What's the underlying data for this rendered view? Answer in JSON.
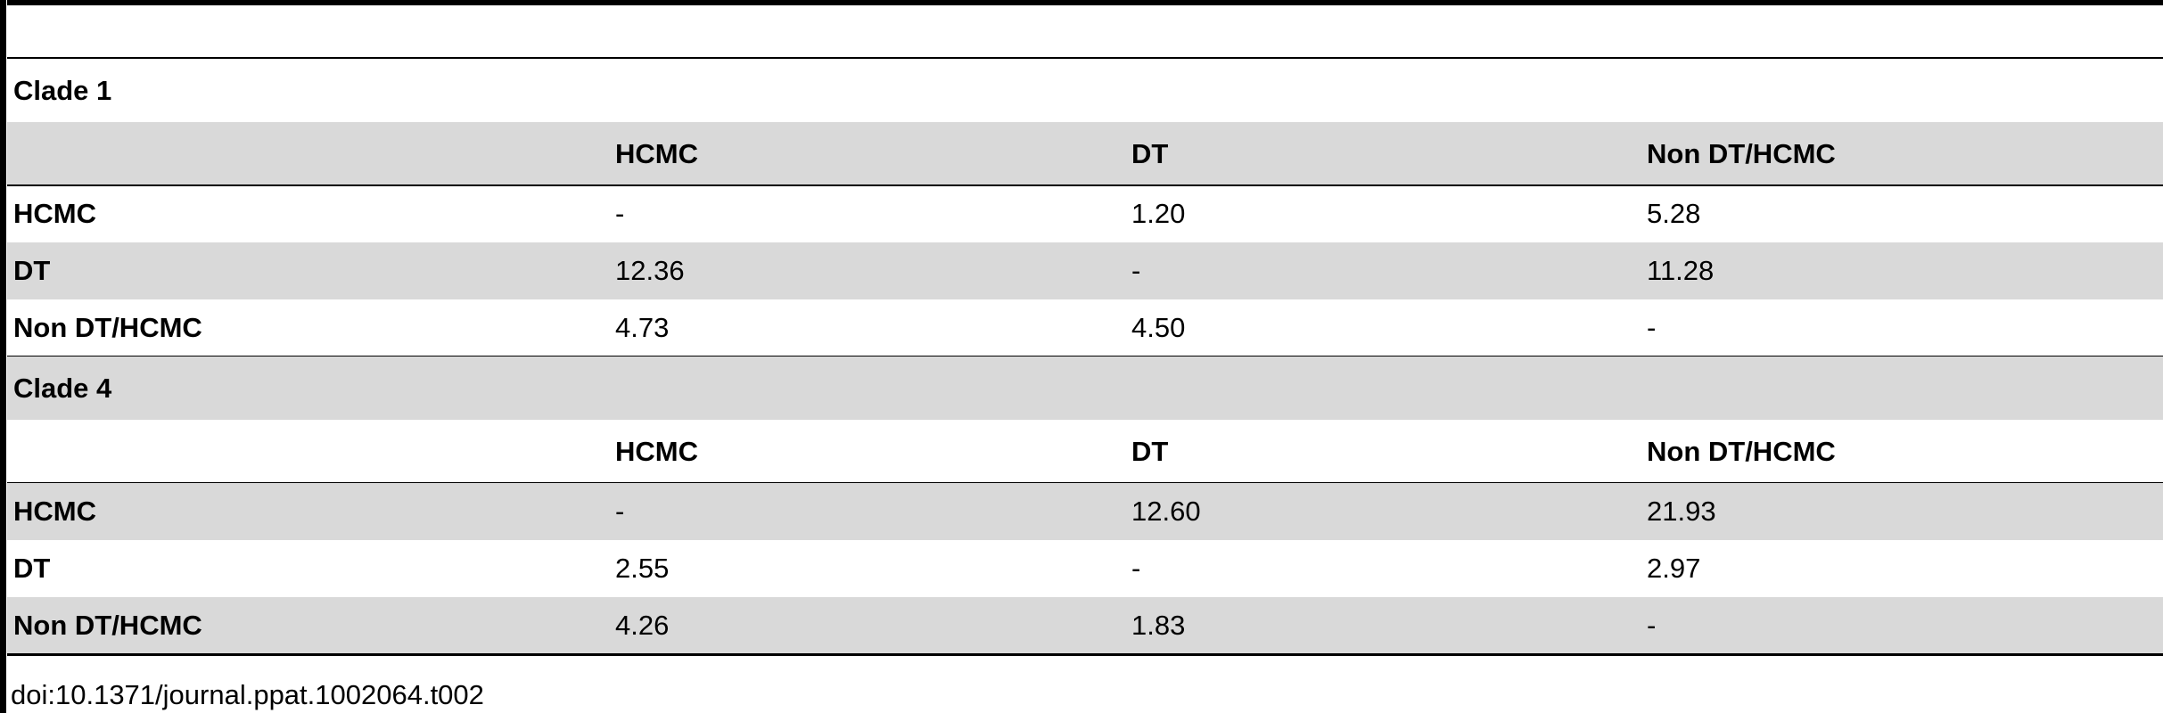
{
  "table": {
    "sections": [
      {
        "title": "Clade 1",
        "columns": [
          "HCMC",
          "DT",
          "Non DT/HCMC"
        ],
        "rows": [
          {
            "label": "HCMC",
            "cells": [
              "-",
              "1.20",
              "5.28"
            ]
          },
          {
            "label": "DT",
            "cells": [
              "12.36",
              "-",
              "11.28"
            ]
          },
          {
            "label": "Non DT/HCMC",
            "cells": [
              "4.73",
              "4.50",
              "-"
            ]
          }
        ]
      },
      {
        "title": "Clade 4",
        "columns": [
          "HCMC",
          "DT",
          "Non DT/HCMC"
        ],
        "rows": [
          {
            "label": "HCMC",
            "cells": [
              "-",
              "12.60",
              "21.93"
            ]
          },
          {
            "label": "DT",
            "cells": [
              "2.55",
              "-",
              "2.97"
            ]
          },
          {
            "label": "Non DT/HCMC",
            "cells": [
              "4.26",
              "1.83",
              "-"
            ]
          }
        ]
      }
    ]
  },
  "footer": {
    "doi": "doi:10.1371/journal.ppat.1002064.t002"
  }
}
